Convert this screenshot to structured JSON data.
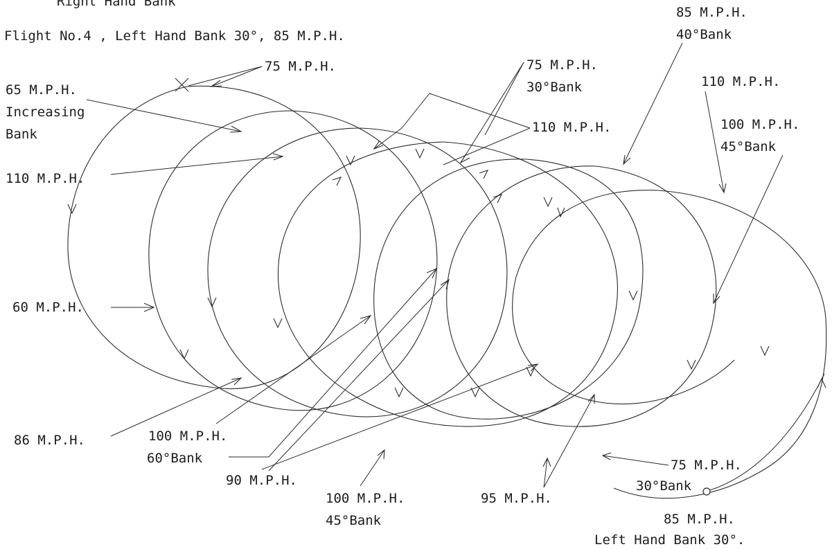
{
  "header": {
    "partial_line": "Right Hand Bank",
    "title": "Flight No.4 , Left Hand Bank 30°, 85 M.P.H."
  },
  "labels": {
    "l75a": "75 M.P.H.",
    "l65": "65 M.P.H.",
    "l_increasing": "Increasing",
    "l_bank": "Bank",
    "l110a": "110 M.P.H.",
    "l60": "60 M.P.H.",
    "l86": "86 M.P.H.",
    "l100a": "100 M.P.H.",
    "l60bank": "60°Bank",
    "l90": "90 M.P.H.",
    "l100b": "100 M.P.H.",
    "l45bank_b": "45°Bank",
    "l95": "95 M.P.H.",
    "l75c": "75 M.P.H.",
    "l30bank_c": "30°Bank",
    "l85end": "85 M.P.H.",
    "l_lefthand": "Left Hand Bank 30°.",
    "l75b": "75 M.P.H.",
    "l30bank_b": "30°Bank",
    "l110b": "110 M.P.H.",
    "l85top": "85 M.P.H.",
    "l40bank": "40°Bank",
    "l110c": "110 M.P.H.",
    "l100c": "100 M.P.H.",
    "l45bank_c": "45°Bank"
  }
}
